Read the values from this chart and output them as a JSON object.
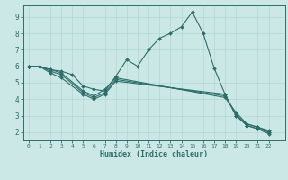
{
  "xlabel": "Humidex (Indice chaleur)",
  "xlim": [
    -0.5,
    23.5
  ],
  "ylim": [
    1.5,
    9.7
  ],
  "bg_color": "#cce8e6",
  "line_color": "#2e6e6a",
  "grid_color": "#b0d8d5",
  "series": [
    {
      "x": [
        0,
        1,
        2,
        3,
        4,
        5,
        6,
        7,
        8,
        9,
        10,
        11,
        12,
        13,
        14,
        15,
        16,
        17,
        18,
        19,
        20,
        21,
        22
      ],
      "y": [
        6.0,
        6.0,
        5.8,
        5.7,
        5.5,
        4.8,
        4.6,
        4.5,
        5.4,
        6.4,
        6.0,
        7.0,
        7.7,
        8.0,
        8.4,
        9.3,
        8.0,
        5.9,
        4.3,
        3.0,
        2.5,
        2.3,
        2.0
      ]
    },
    {
      "x": [
        0,
        1,
        2,
        3,
        5,
        6,
        7,
        8,
        18,
        19,
        20,
        21,
        22
      ],
      "y": [
        6.0,
        6.0,
        5.8,
        5.6,
        4.5,
        4.2,
        4.6,
        5.3,
        4.1,
        3.2,
        2.5,
        2.3,
        2.1
      ]
    },
    {
      "x": [
        0,
        1,
        2,
        3,
        5,
        6,
        7,
        8,
        18,
        19,
        20,
        21,
        22
      ],
      "y": [
        6.0,
        6.0,
        5.7,
        5.5,
        4.4,
        4.1,
        4.4,
        5.2,
        4.2,
        3.1,
        2.4,
        2.2,
        2.0
      ]
    },
    {
      "x": [
        0,
        1,
        2,
        3,
        5,
        6,
        7,
        8,
        18,
        19,
        20,
        21,
        22
      ],
      "y": [
        6.0,
        6.0,
        5.6,
        5.3,
        4.3,
        4.0,
        4.3,
        5.1,
        4.3,
        3.0,
        2.4,
        2.2,
        1.9
      ]
    }
  ]
}
